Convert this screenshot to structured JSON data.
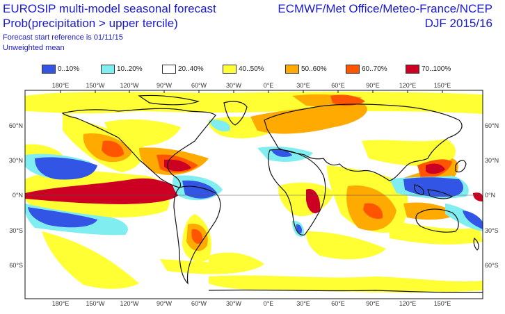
{
  "header": {
    "title_left": "EUROSIP multi-model seasonal forecast",
    "subtitle_left": "Prob(precipitation > upper tercile)",
    "start_ref": "Forecast start reference is 01/11/15",
    "weighting": "Unweighted mean",
    "title_right": "ECMWF/Met Office/Meteo-France/NCEP",
    "period": "DJF 2015/16"
  },
  "legend": [
    {
      "label": "0..10%",
      "color": "#3355e6"
    },
    {
      "label": "10..20%",
      "color": "#80eef0"
    },
    {
      "label": "20..40%",
      "color": "#ffffff"
    },
    {
      "label": "40..50%",
      "color": "#ffff33"
    },
    {
      "label": "50..60%",
      "color": "#ffaa00"
    },
    {
      "label": "60..70%",
      "color": "#ff5500"
    },
    {
      "label": "70..100%",
      "color": "#cc0022"
    }
  ],
  "map": {
    "lon_labels": [
      "180°E",
      "150°W",
      "120°W",
      "90°W",
      "60°W",
      "30°W",
      "0°E",
      "30°E",
      "60°E",
      "90°E",
      "120°E",
      "150°E"
    ],
    "lat_labels": [
      "60°N",
      "30°N",
      "0°N",
      "30°S",
      "60°S"
    ]
  }
}
